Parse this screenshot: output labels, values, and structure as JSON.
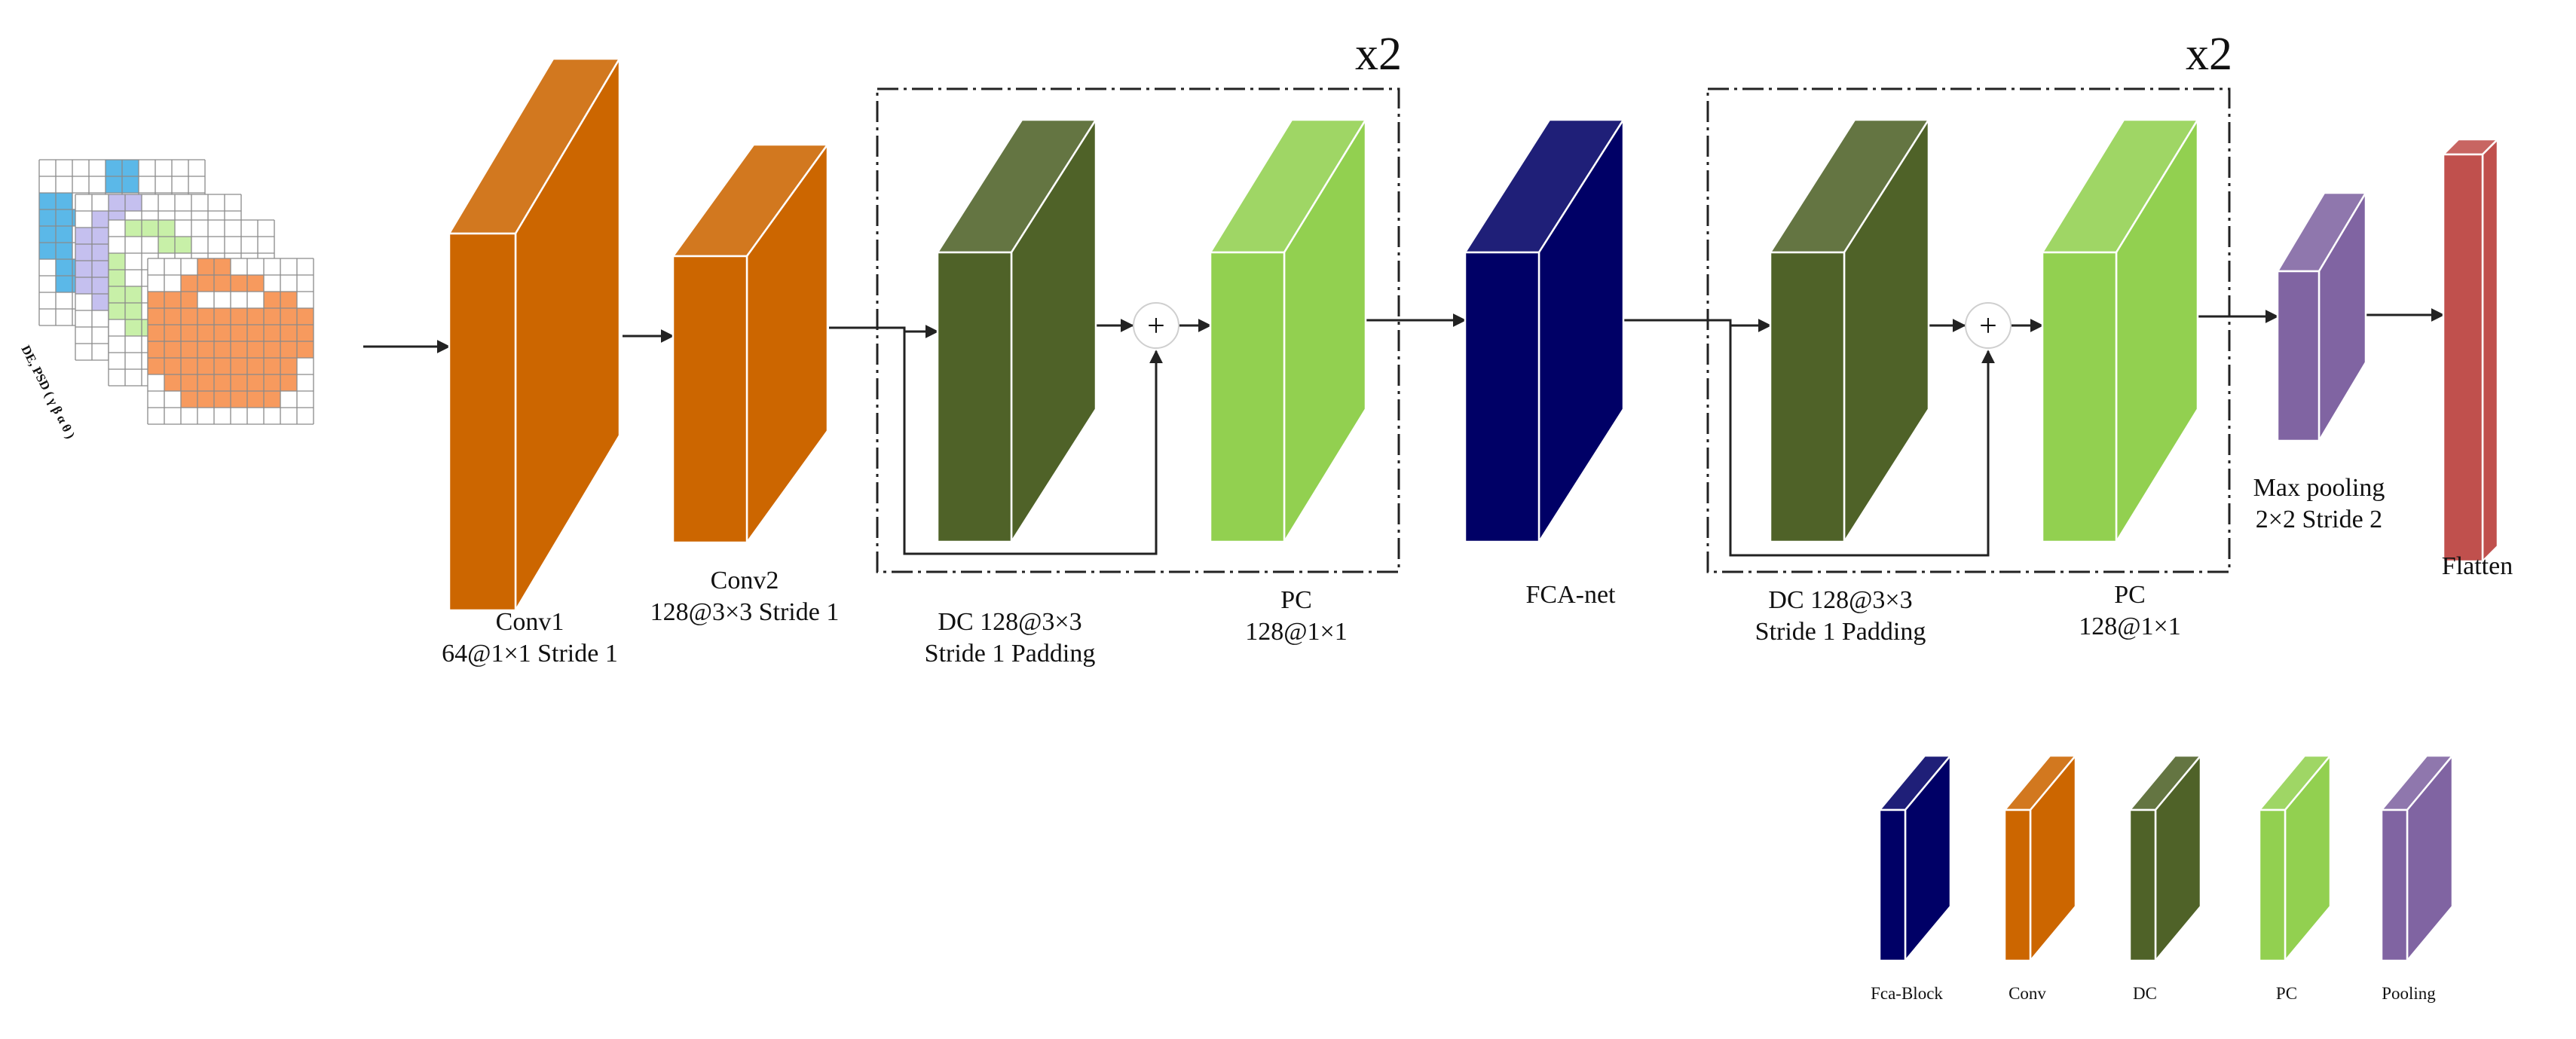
{
  "colors": {
    "conv": "#cc6600",
    "dc": "#4f6228",
    "pc": "#92d050",
    "fca": "#000066",
    "pooling": "#8064a2",
    "flatten": "#c0504d"
  },
  "input": {
    "axis_label": "DE, PSD ( γ β α θ )"
  },
  "blocks": {
    "conv1": {
      "name": "Conv1",
      "spec": "64@1×1  Stride 1"
    },
    "conv2": {
      "name": "Conv2",
      "spec": "128@3×3  Stride 1"
    },
    "dc1": {
      "spec": "DC 128@3×3",
      "spec2": "Stride 1  Padding"
    },
    "pc1": {
      "name": "PC",
      "spec": "128@1×1"
    },
    "fca": {
      "name": "FCA-net"
    },
    "dc2": {
      "spec": "DC 128@3×3",
      "spec2": "Stride 1  Padding"
    },
    "pc2": {
      "name": "PC",
      "spec": "128@1×1"
    },
    "pool": {
      "name": "Max pooling",
      "spec": "2×2  Stride 2"
    },
    "flatten": {
      "name": "Flatten"
    }
  },
  "repeat_label": "x2",
  "add_symbol": "+",
  "legend": [
    {
      "label": "Fca-Block",
      "key": "fca"
    },
    {
      "label": "Conv",
      "key": "conv"
    },
    {
      "label": "DC",
      "key": "dc"
    },
    {
      "label": "PC",
      "key": "pc"
    },
    {
      "label": "Pooling",
      "key": "pooling"
    }
  ]
}
